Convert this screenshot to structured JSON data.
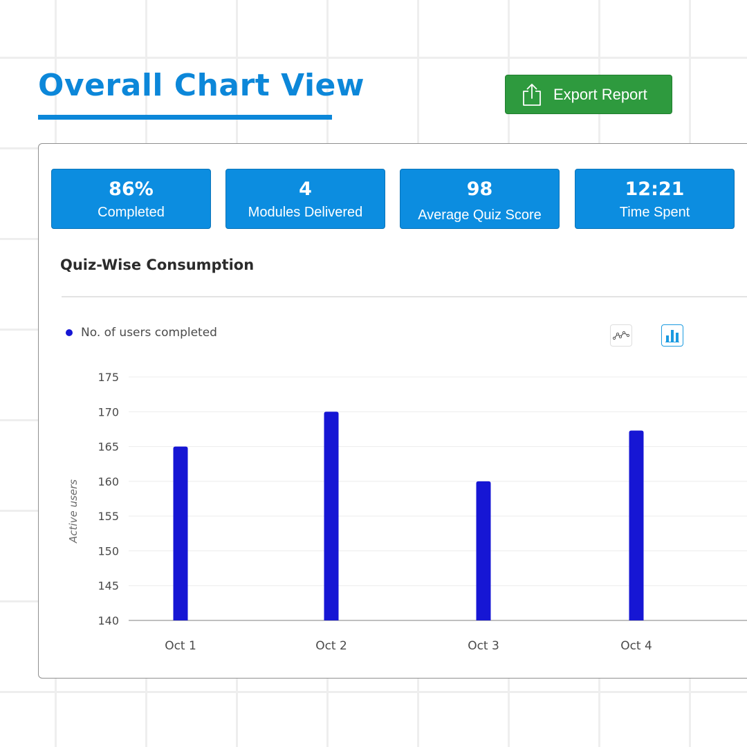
{
  "header": {
    "title": "Overall Chart View",
    "export_label": "Export Report",
    "export_icon": "share-export-icon"
  },
  "colors": {
    "brand_blue": "#0c87d9",
    "stat_card_blue": "#0c8de0",
    "export_green": "#2e9a3e",
    "bar_color": "#1616d4"
  },
  "stats": [
    {
      "value": "86%",
      "label": "Completed"
    },
    {
      "value": "4",
      "label": "Modules Delivered"
    },
    {
      "value": "98",
      "label": "Average Quiz Score"
    },
    {
      "value": "12:21",
      "label": "Time Spent"
    }
  ],
  "chart": {
    "title": "Quiz-Wise Consumption",
    "toggles": [
      {
        "icon": "line-chart-icon",
        "active": false
      },
      {
        "icon": "bar-chart-icon",
        "active": true
      }
    ]
  },
  "chart_data": {
    "type": "bar",
    "categories": [
      "Oct 1",
      "Oct 2",
      "Oct 3",
      "Oct 4"
    ],
    "series": [
      {
        "name": "No. of users completed",
        "values": [
          165,
          170,
          160,
          167.3
        ]
      }
    ],
    "xlabel": "",
    "ylabel": "Active users",
    "ylim": [
      140,
      175
    ],
    "yticks": [
      140,
      145,
      150,
      155,
      160,
      165,
      170,
      175
    ],
    "grid": true,
    "legend": "top-left"
  }
}
